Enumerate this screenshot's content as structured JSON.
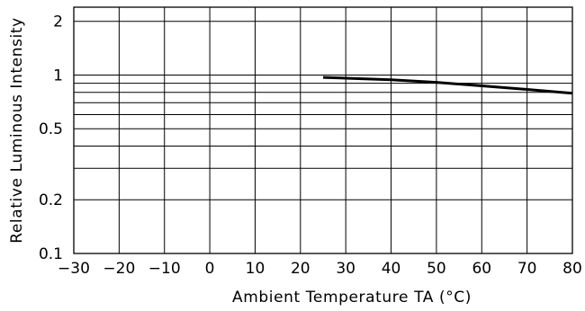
{
  "chart_data": {
    "type": "line",
    "title": "",
    "xlabel": "Ambient Temperature TA (°C)",
    "ylabel": "Relative Luminous Intensity",
    "xlim": [
      -30,
      80
    ],
    "ylim": [
      0.1,
      2.4
    ],
    "y_scale": "log",
    "grid": true,
    "x_ticks": [
      -30,
      -20,
      -10,
      0,
      10,
      20,
      30,
      40,
      50,
      60,
      70,
      80
    ],
    "x_tick_labels": [
      "−30",
      "−20",
      "−10",
      "0",
      "10",
      "20",
      "30",
      "40",
      "50",
      "60",
      "70",
      "80"
    ],
    "y_tick_labels": [
      {
        "value": 0.1,
        "label": "0.1"
      },
      {
        "value": 0.2,
        "label": "0.2"
      },
      {
        "value": 0.5,
        "label": "0.5"
      },
      {
        "value": 1,
        "label": "1"
      },
      {
        "value": 2,
        "label": "2"
      }
    ],
    "y_gridlines": [
      0.1,
      0.2,
      0.3,
      0.4,
      0.5,
      0.6,
      0.7,
      0.8,
      0.9,
      1,
      2
    ],
    "series": [
      {
        "color": "#000000",
        "x": [
          25,
          30,
          40,
          50,
          60,
          70,
          80
        ],
        "y": [
          0.97,
          0.96,
          0.94,
          0.91,
          0.87,
          0.83,
          0.79
        ]
      }
    ]
  }
}
